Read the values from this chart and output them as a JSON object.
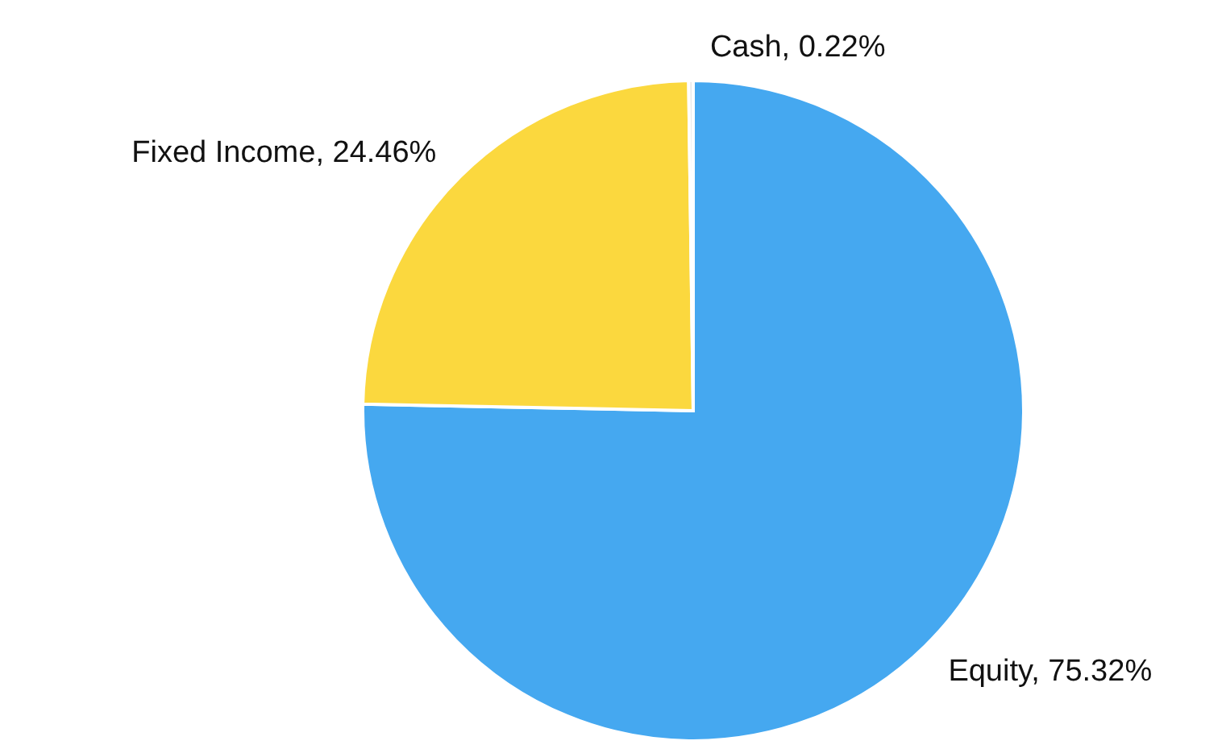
{
  "chart_data": {
    "type": "pie",
    "categories": [
      "Equity",
      "Fixed Income",
      "Cash"
    ],
    "values": [
      75.32,
      24.46,
      0.22
    ],
    "value_labels": [
      "75.32%",
      "24.46%",
      "0.22%"
    ],
    "colors": [
      "#45a8f0",
      "#fbd83e",
      "#e8e8e8"
    ]
  }
}
